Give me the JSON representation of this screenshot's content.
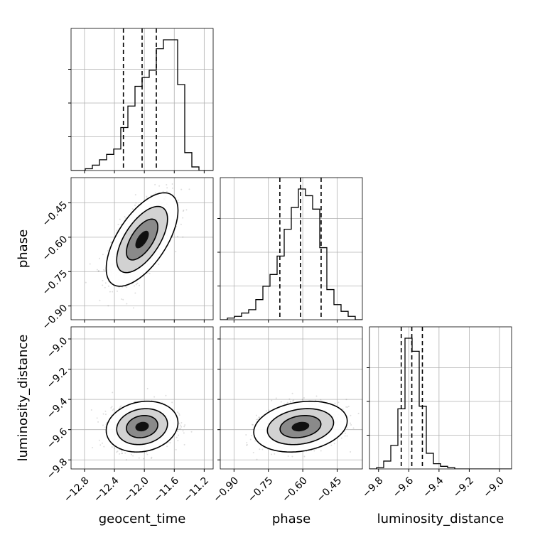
{
  "chart_data": {
    "type": "corner",
    "parameters": [
      "geocent_time",
      "phase",
      "luminosity_distance"
    ],
    "axis_labels": {
      "geocent_time": "geocent_time",
      "phase": "phase",
      "luminosity_distance": "luminosity_distance"
    },
    "ranges": {
      "geocent_time": [
        -12.98,
        -11.08
      ],
      "phase": [
        -0.96,
        -0.34
      ],
      "luminosity_distance": [
        -9.86,
        -8.92
      ]
    },
    "ticks": {
      "geocent_time": [
        -12.8,
        -12.4,
        -12.0,
        -11.6,
        -11.2
      ],
      "phase": [
        -0.9,
        -0.75,
        -0.6,
        -0.45
      ],
      "luminosity_distance": [
        -9.8,
        -9.6,
        -9.4,
        -9.2,
        -9.0
      ]
    },
    "tick_labels": {
      "geocent_time": [
        "−12.8",
        "−12.4",
        "−12.0",
        "−11.6",
        "−11.2"
      ],
      "phase": [
        "−0.90",
        "−0.75",
        "−0.60",
        "−0.45"
      ],
      "luminosity_distance": [
        "−9.8",
        "−9.6",
        "−9.4",
        "−9.2",
        "−9.0"
      ]
    },
    "quantiles": {
      "geocent_time": [
        -12.28,
        -12.03,
        -11.84
      ],
      "phase": [
        -0.7,
        -0.61,
        -0.52
      ],
      "luminosity_distance": [
        -9.65,
        -9.58,
        -9.51
      ]
    },
    "histograms": {
      "geocent_time": {
        "edges_range": [
          -12.98,
          -11.08
        ],
        "counts": [
          0,
          0,
          1,
          3,
          6,
          9,
          12,
          24,
          36,
          47,
          52,
          56,
          68,
          73,
          73,
          48,
          10,
          2,
          0,
          0
        ]
      },
      "phase": {
        "edges_range": [
          -0.96,
          -0.34
        ],
        "counts": [
          0,
          1,
          2,
          4,
          6,
          12,
          20,
          27,
          38,
          54,
          67,
          78,
          74,
          66,
          43,
          18,
          9,
          5,
          2,
          0
        ]
      },
      "luminosity_distance": {
        "edges_range": [
          -9.86,
          -8.92
        ],
        "counts": [
          0,
          1,
          6,
          18,
          46,
          100,
          90,
          48,
          12,
          4,
          2,
          1,
          0,
          0,
          0,
          0,
          0,
          0,
          0,
          0
        ]
      }
    },
    "correlations": {
      "phase|geocent_time": 0.62,
      "luminosity_distance|geocent_time": 0.15,
      "luminosity_distance|phase": 0.22
    },
    "means": {
      "geocent_time": -12.03,
      "phase": -0.61,
      "luminosity_distance": -9.58
    },
    "std": {
      "geocent_time": 0.2,
      "phase": 0.085,
      "luminosity_distance": 0.07
    },
    "grid": true
  }
}
